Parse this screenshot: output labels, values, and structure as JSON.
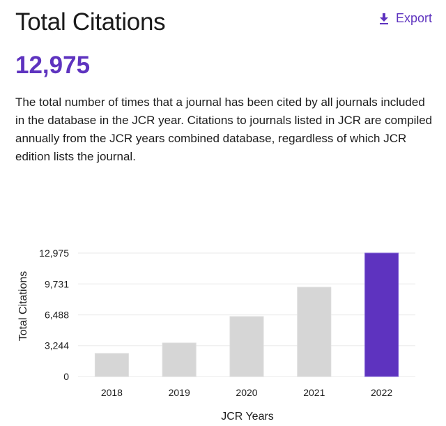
{
  "header": {
    "title": "Total Citations",
    "export_label": "Export",
    "export_icon": "download-icon"
  },
  "metric": {
    "value": "12,975"
  },
  "description": "The total number of times that a journal has been cited by all journals included in the database in the JCR year. Citations to journals listed in JCR are compiled annually from the JCR years combined database, regardless of which JCR edition lists the journal.",
  "colors": {
    "accent": "#5e33bf",
    "bar_default": "#d6d6d6",
    "grid": "#f0f0f0"
  },
  "chart_data": {
    "type": "bar",
    "title": "",
    "xlabel": "JCR Years",
    "ylabel": "Total Citations",
    "categories": [
      "2018",
      "2019",
      "2020",
      "2021",
      "2022"
    ],
    "values": [
      2420,
      3520,
      6300,
      9380,
      12975
    ],
    "highlighted": "2022",
    "ylim": [
      0,
      12975
    ],
    "yticks": [
      0,
      3244,
      6488,
      9731,
      12975
    ],
    "ytick_labels": [
      "0",
      "3,244",
      "6,488",
      "9,731",
      "12,975"
    ],
    "grid": true,
    "legend": "none"
  }
}
